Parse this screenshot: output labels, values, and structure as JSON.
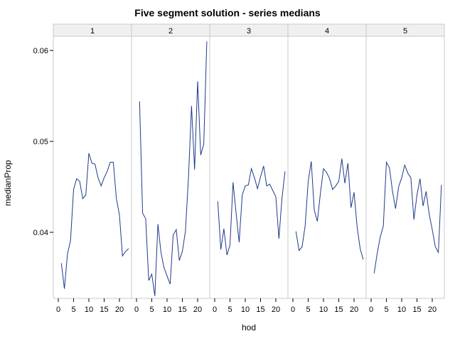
{
  "chart_data": {
    "type": "line",
    "title": "Five segment solution - series medians",
    "xlabel": "hod",
    "ylabel": "medianProp",
    "ylim": [
      0.033,
      0.061
    ],
    "yticks": [
      "0.04",
      "0.05",
      "0.06"
    ],
    "ytick_values": [
      0.04,
      0.05,
      0.06
    ],
    "xticks": [
      "0",
      "5",
      "10",
      "15",
      "20"
    ],
    "xtick_values": [
      0,
      5,
      10,
      15,
      20
    ],
    "panels": [
      "1",
      "2",
      "3",
      "4",
      "5"
    ],
    "grid": false,
    "legend": "none",
    "line_color": "#1f3a8a",
    "series": [
      {
        "name": "1",
        "x": [
          1,
          2,
          3,
          4,
          5,
          6,
          7,
          8,
          9,
          10,
          11,
          12,
          13,
          14,
          15,
          16,
          17,
          18,
          19,
          20,
          21,
          22,
          23
        ],
        "values": [
          0.0366,
          0.0338,
          0.0376,
          0.0391,
          0.0447,
          0.0459,
          0.0456,
          0.0437,
          0.0441,
          0.0487,
          0.0476,
          0.0475,
          0.046,
          0.0451,
          0.046,
          0.0467,
          0.0477,
          0.0477,
          0.0437,
          0.0419,
          0.0374,
          0.0379,
          0.0382
        ]
      },
      {
        "name": "2",
        "x": [
          1,
          2,
          3,
          4,
          5,
          6,
          7,
          8,
          9,
          10,
          11,
          12,
          13,
          14,
          15,
          16,
          17,
          18,
          19,
          20,
          21,
          22,
          23
        ],
        "values": [
          0.0544,
          0.0421,
          0.0415,
          0.0347,
          0.0354,
          0.033,
          0.0409,
          0.0378,
          0.0361,
          0.0352,
          0.0343,
          0.0397,
          0.0403,
          0.0369,
          0.0379,
          0.0401,
          0.046,
          0.0539,
          0.0469,
          0.0566,
          0.0485,
          0.0497,
          0.061
        ]
      },
      {
        "name": "3",
        "x": [
          1,
          2,
          3,
          4,
          5,
          6,
          7,
          8,
          9,
          10,
          11,
          12,
          13,
          14,
          15,
          16,
          17,
          18,
          19,
          20,
          21,
          22,
          23
        ],
        "values": [
          0.0434,
          0.0381,
          0.0404,
          0.0375,
          0.0386,
          0.0455,
          0.0421,
          0.0389,
          0.0441,
          0.0451,
          0.0452,
          0.047,
          0.046,
          0.0448,
          0.0461,
          0.0473,
          0.0451,
          0.0453,
          0.0446,
          0.0439,
          0.0393,
          0.0437,
          0.0467
        ]
      },
      {
        "name": "4",
        "x": [
          1,
          2,
          3,
          4,
          5,
          6,
          7,
          8,
          9,
          10,
          11,
          12,
          13,
          14,
          15,
          16,
          17,
          18,
          19,
          20,
          21,
          22,
          23
        ],
        "values": [
          0.0401,
          0.038,
          0.0384,
          0.0407,
          0.0456,
          0.0478,
          0.0424,
          0.0412,
          0.0443,
          0.047,
          0.0466,
          0.0459,
          0.0447,
          0.0451,
          0.0456,
          0.0481,
          0.0454,
          0.0476,
          0.0427,
          0.0444,
          0.0406,
          0.0382,
          0.037
        ]
      },
      {
        "name": "5",
        "x": [
          1,
          2,
          3,
          4,
          5,
          6,
          7,
          8,
          9,
          10,
          11,
          12,
          13,
          14,
          15,
          16,
          17,
          18,
          19,
          20,
          21,
          22,
          23
        ],
        "values": [
          0.0355,
          0.0377,
          0.0395,
          0.0407,
          0.0477,
          0.0471,
          0.0445,
          0.0426,
          0.045,
          0.046,
          0.0474,
          0.0465,
          0.046,
          0.0414,
          0.0441,
          0.0459,
          0.0429,
          0.0445,
          0.042,
          0.0403,
          0.0384,
          0.0378,
          0.0452
        ]
      }
    ]
  }
}
